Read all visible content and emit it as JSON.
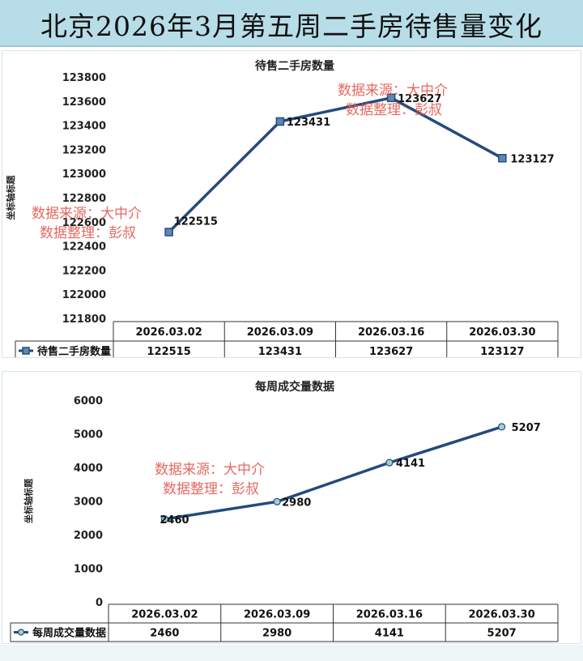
{
  "page_title": "北京2026年3月第五周二手房待售量变化",
  "watermark": {
    "line1": "数据来源：大中介",
    "line2": "数据整理：彭叔",
    "color": "#e3584e"
  },
  "colors": {
    "header_bg": "#b7dde8",
    "line": "#254a7c",
    "marker_square": "#5b87b5",
    "marker_circle": "#9fd0d0"
  },
  "chart_data": [
    {
      "type": "line",
      "title": "待售二手房数量",
      "ylabel": "坐标轴标题",
      "xlabel": "",
      "ylim": [
        121800,
        123800
      ],
      "ytick_step": 200,
      "grid": false,
      "categories": [
        "2026.03.02",
        "2026.03.09",
        "2026.03.16",
        "2026.03.30"
      ],
      "series": [
        {
          "name": "待售二手房数量",
          "values": [
            122515,
            123431,
            123627,
            123127
          ],
          "marker": "square"
        }
      ],
      "legend": "data-table"
    },
    {
      "type": "line",
      "title": "每周成交量数据",
      "ylabel": "坐标轴标题",
      "xlabel": "",
      "ylim": [
        0,
        6000
      ],
      "ytick_step": 1000,
      "grid": false,
      "categories": [
        "2026.03.02",
        "2026.03.09",
        "2026.03.16",
        "2026.03.30"
      ],
      "series": [
        {
          "name": "每周成交量数据",
          "values": [
            2460,
            2980,
            4141,
            5207
          ],
          "marker": "circle"
        }
      ],
      "legend": "data-table"
    }
  ]
}
